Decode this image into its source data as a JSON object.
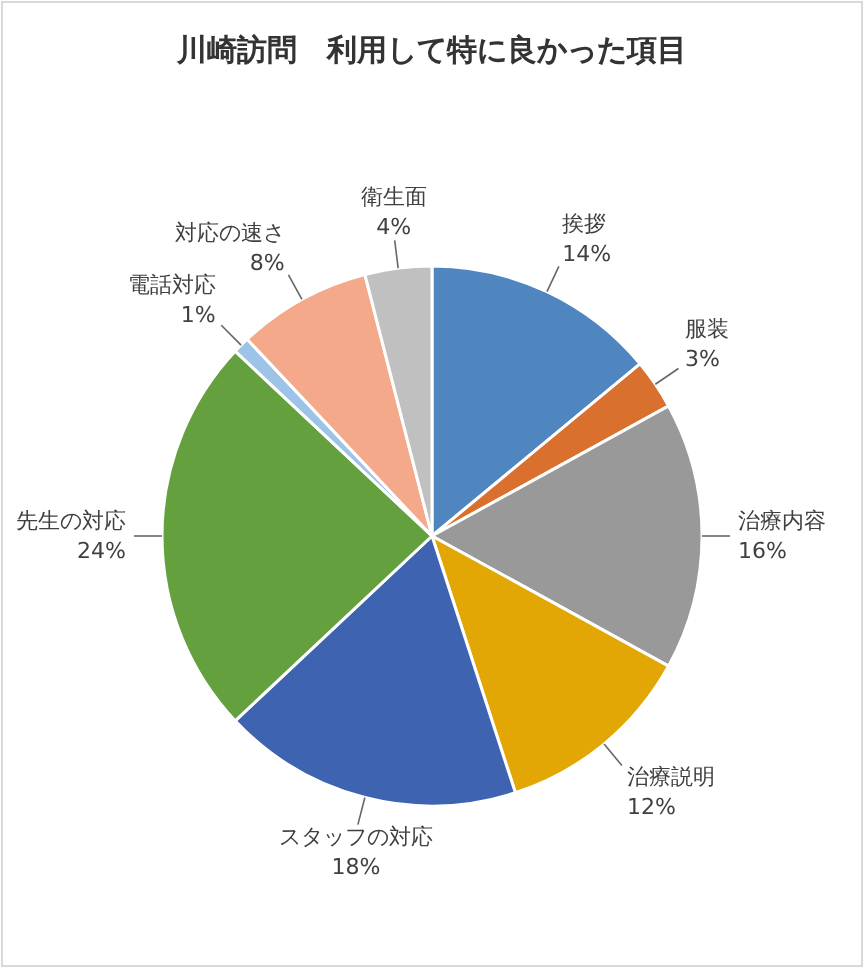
{
  "chart_data": {
    "type": "pie",
    "title": "川崎訪問　利用して特に良かった項目",
    "categories": [
      "挨拶",
      "服装",
      "治療内容",
      "治療説明",
      "スタッフの対応",
      "先生の対応",
      "電話対応",
      "対応の速さ",
      "衛生面"
    ],
    "values": [
      14,
      3,
      16,
      12,
      18,
      24,
      1,
      8,
      4
    ],
    "value_labels": [
      "14%",
      "3%",
      "16%",
      "12%",
      "18%",
      "24%",
      "1%",
      "8%",
      "4%"
    ],
    "colors": [
      "#4f86c0",
      "#d9702e",
      "#999999",
      "#e2a705",
      "#3e63b0",
      "#65a03e",
      "#9dc3e6",
      "#f3a98a",
      "#c0c0c0"
    ]
  }
}
